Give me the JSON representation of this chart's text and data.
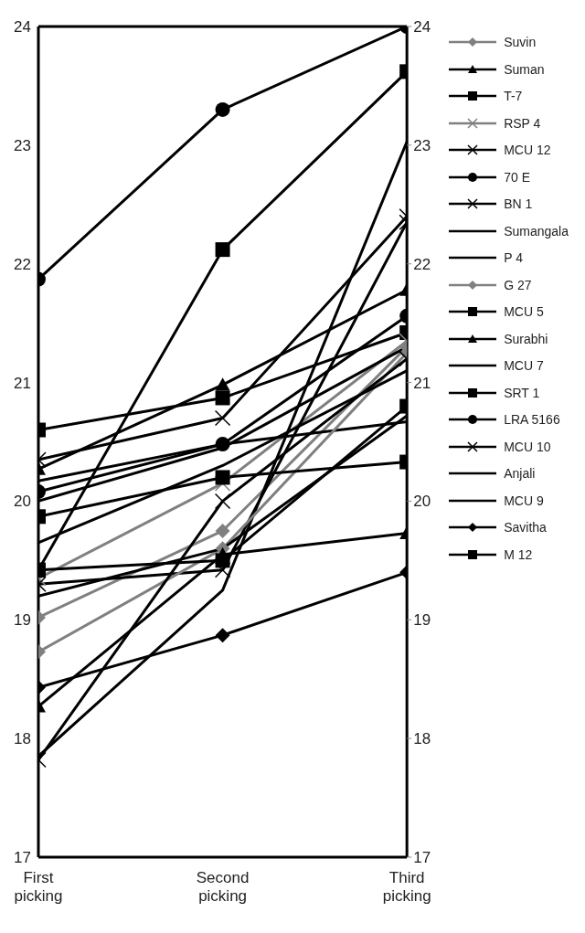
{
  "chart_data": {
    "type": "line",
    "categories": [
      "First picking",
      "Second picking",
      "Third picking"
    ],
    "ylim": [
      17,
      24
    ],
    "yticks": [
      17,
      18,
      19,
      20,
      21,
      22,
      23,
      24
    ],
    "y2lim": [
      17,
      24
    ],
    "y2ticks": [
      17,
      18,
      19,
      20,
      21,
      22,
      23,
      24
    ],
    "legend": "right",
    "series": [
      {
        "name": "Suvin",
        "color": "#808080",
        "marker": "diamond",
        "values": [
          19.02,
          19.75,
          21.3
        ]
      },
      {
        "name": "Suman",
        "color": "#000000",
        "marker": "triangle",
        "values": [
          20.27,
          20.98,
          21.78
        ]
      },
      {
        "name": "T-7",
        "color": "#000000",
        "marker": "square",
        "values": [
          20.6,
          20.87,
          21.42
        ]
      },
      {
        "name": "RSP 4",
        "color": "#808080",
        "marker": "cross",
        "values": [
          19.35,
          20.15,
          21.35
        ]
      },
      {
        "name": "MCU 12",
        "color": "#000000",
        "marker": "cross",
        "values": [
          19.3,
          19.42,
          22.35
        ]
      },
      {
        "name": "70 E",
        "color": "#000000",
        "marker": "circle",
        "values": [
          21.87,
          23.3,
          24
        ]
      },
      {
        "name": "BN 1",
        "color": "#000000",
        "marker": "cross",
        "values": [
          20.35,
          20.7,
          22.4
        ]
      },
      {
        "name": "Sumangala",
        "color": "#000000",
        "marker": "none",
        "values": [
          17.85,
          19.25,
          23.03
        ]
      },
      {
        "name": "P 4",
        "color": "#000000",
        "marker": "none",
        "values": [
          20.17,
          20.48,
          20.67
        ]
      },
      {
        "name": "G 27",
        "color": "#808080",
        "marker": "diamond",
        "values": [
          18.73,
          19.6,
          21.25
        ]
      },
      {
        "name": "MCU 5",
        "color": "#000000",
        "marker": "square",
        "values": [
          19.87,
          20.2,
          20.33
        ]
      },
      {
        "name": "Surabhi",
        "color": "#000000",
        "marker": "triangle",
        "values": [
          18.27,
          19.55,
          19.73
        ]
      },
      {
        "name": "MCU 7",
        "color": "#000000",
        "marker": "none",
        "values": [
          20.0,
          20.45,
          21.3
        ]
      },
      {
        "name": "SRT 1",
        "color": "#000000",
        "marker": "square",
        "values": [
          19.42,
          22.12,
          23.62
        ]
      },
      {
        "name": "LRA 5166",
        "color": "#000000",
        "marker": "circle",
        "values": [
          20.08,
          20.48,
          21.56
        ]
      },
      {
        "name": "MCU 10",
        "color": "#000000",
        "marker": "cross",
        "values": [
          17.82,
          20.0,
          21.2
        ]
      },
      {
        "name": "Anjali",
        "color": "#000000",
        "marker": "none",
        "values": [
          19.2,
          19.6,
          20.72
        ]
      },
      {
        "name": "MCU 9",
        "color": "#000000",
        "marker": "none",
        "values": [
          19.65,
          20.3,
          21.1
        ]
      },
      {
        "name": "Savitha",
        "color": "#000000",
        "marker": "diamond",
        "values": [
          18.43,
          18.87,
          19.4
        ]
      },
      {
        "name": "M 12",
        "color": "#000000",
        "marker": "square",
        "values": [
          19.42,
          19.5,
          20.8
        ]
      }
    ]
  }
}
